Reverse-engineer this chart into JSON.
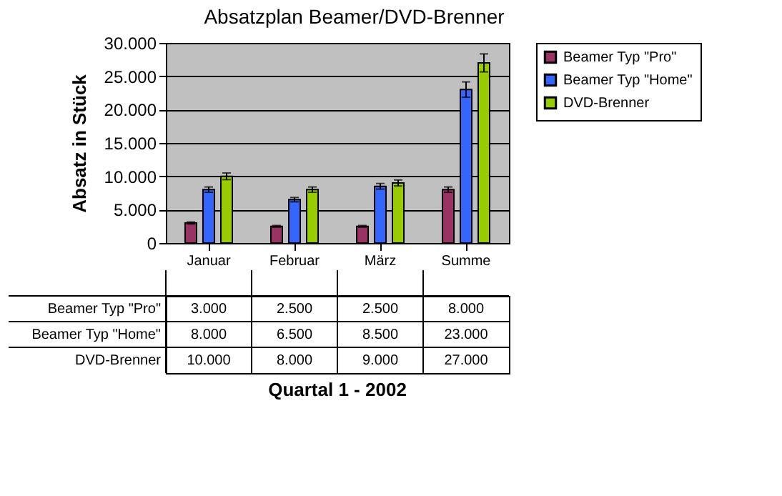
{
  "chart_data": {
    "type": "bar",
    "title": "Absatzplan Beamer/DVD-Brenner",
    "annotations": [
      "Quartal 1 - 2002"
    ],
    "ylabel": "Absatz in Stück",
    "categories": [
      "Januar",
      "Februar",
      "März",
      "Summe"
    ],
    "series": [
      {
        "name": "Beamer Typ \"Pro\"",
        "color": "#993366",
        "values": [
          3000,
          2500,
          2500,
          8000
        ],
        "errors": [
          150,
          125,
          125,
          400
        ],
        "value_labels": [
          "3.000",
          "2.500",
          "2.500",
          "8.000"
        ]
      },
      {
        "name": "Beamer Typ \"Home\"",
        "color": "#3366ff",
        "values": [
          8000,
          6500,
          8500,
          23000
        ],
        "errors": [
          400,
          325,
          425,
          1150
        ],
        "value_labels": [
          "8.000",
          "6.500",
          "8.500",
          "23.000"
        ]
      },
      {
        "name": "DVD-Brenner",
        "color": "#99cc00",
        "values": [
          10000,
          8000,
          9000,
          27000
        ],
        "errors": [
          500,
          400,
          450,
          1350
        ],
        "value_labels": [
          "10.000",
          "8.000",
          "9.000",
          "27.000"
        ]
      }
    ],
    "ylim": [
      0,
      30000
    ],
    "yticks": [
      0,
      {
        "value": 5000,
        "label": "5.000"
      },
      {
        "value": 10000,
        "label": "10.000"
      },
      {
        "value": 15000,
        "label": "15.000"
      },
      {
        "value": 20000,
        "label": "20.000"
      },
      {
        "value": 25000,
        "label": "25.000"
      },
      {
        "value": 30000,
        "label": "30.000"
      }
    ],
    "grid": "y",
    "legend": "right"
  }
}
